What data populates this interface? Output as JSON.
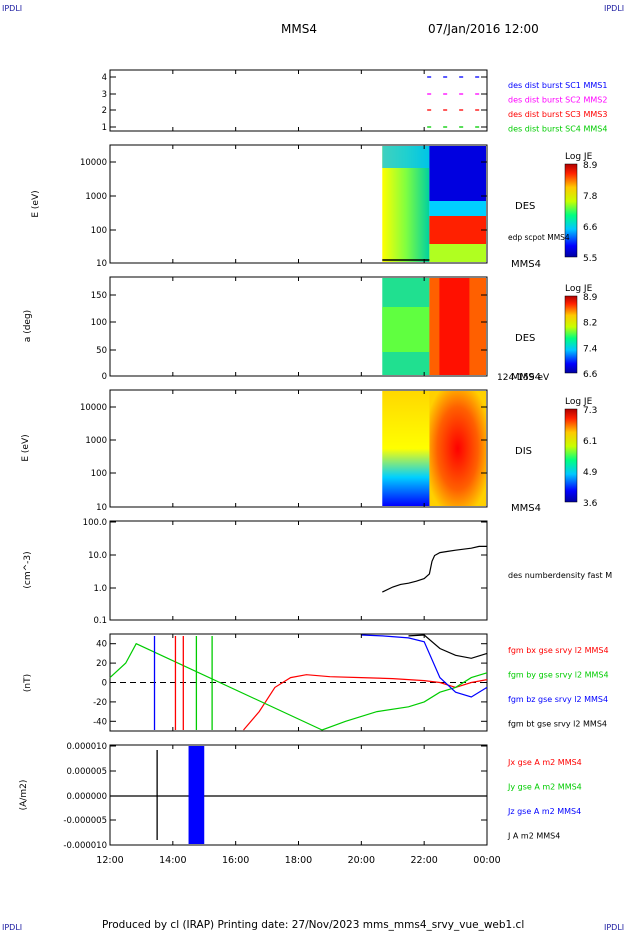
{
  "corners": {
    "tl": "IPDLI",
    "tr": "IPDLI",
    "bl": "IPDLI",
    "br": "IPDLI"
  },
  "header": {
    "spacecraft": "MMS4",
    "datetime": "07/Jan/2016 12:00"
  },
  "footer": {
    "text": "Produced by cl (IRAP)   Printing date: 27/Nov/2023   mms_mms4_srvy_vue_web1.cl"
  },
  "colors": {
    "blue": "#0000ff",
    "magenta": "#ff00ff",
    "red": "#ff0000",
    "green": "#00cc00",
    "black": "#000000"
  },
  "chart_data": [
    {
      "type": "scatter",
      "panel": "availability",
      "yticks": [
        "1",
        "2",
        "3",
        "4"
      ],
      "series": [
        {
          "name": "des dist burst SC1 MMS1",
          "color": "#0000ff",
          "y": 4
        },
        {
          "name": "des dist burst SC2 MMS2",
          "color": "#ff00ff",
          "y": 3
        },
        {
          "name": "des dist burst SC3 MMS3",
          "color": "#ff0000",
          "y": 2
        },
        {
          "name": "des dist burst SC4 MMS4",
          "color": "#00cc00",
          "y": 1
        }
      ],
      "x_start": "22:00",
      "x_end": "00:00"
    },
    {
      "type": "heatmap",
      "panel": "des-energy",
      "ylabel": "E (eV)",
      "yticks": [
        "10",
        "100",
        "1000",
        "10000"
      ],
      "label": "DES",
      "overlay": "edp scpot MMS4",
      "extra_label": "MMS4",
      "colorbar": {
        "title": "Log JE",
        "ticks": [
          "8.9",
          "7.8",
          "6.6",
          "5.5"
        ]
      }
    },
    {
      "type": "heatmap",
      "panel": "des-pitch",
      "ylabel": "a (deg)",
      "yticks": [
        "0",
        "50",
        "100",
        "150"
      ],
      "label": "DES",
      "extra_label": "MMS4",
      "energy_range": "124-159 eV",
      "colorbar": {
        "title": "Log JE",
        "ticks": [
          "8.9",
          "8.2",
          "7.4",
          "6.6"
        ]
      }
    },
    {
      "type": "heatmap",
      "panel": "dis-energy",
      "ylabel": "E (eV)",
      "yticks": [
        "10",
        "100",
        "1000",
        "10000"
      ],
      "label": "DIS",
      "extra_label": "MMS4",
      "colorbar": {
        "title": "Log JE",
        "ticks": [
          "7.3",
          "6.1",
          "4.9",
          "3.6"
        ]
      }
    },
    {
      "type": "line",
      "panel": "density",
      "ylabel": "(cm^-3)",
      "yticks": [
        "0.1",
        "1.0",
        "10.0",
        "100.0"
      ],
      "series": [
        {
          "name": "des numberdensity fast M",
          "color": "#000000",
          "x": [
            "20:40",
            "21:00",
            "21:15",
            "21:30",
            "21:45",
            "22:00",
            "22:10",
            "22:15",
            "22:20",
            "22:30",
            "22:45",
            "23:00",
            "23:15",
            "23:30",
            "23:45",
            "00:00"
          ],
          "y": [
            0.7,
            1.0,
            1.2,
            1.3,
            1.5,
            1.8,
            2.5,
            6,
            9,
            11,
            12,
            13,
            14,
            15,
            17,
            17
          ]
        }
      ]
    },
    {
      "type": "line",
      "panel": "magnetic-field",
      "ylabel": "(nT)",
      "yticks": [
        "-40",
        "-20",
        "0",
        "20",
        "40"
      ],
      "series": [
        {
          "name": "fgm bx gse srvy l2 MMS4",
          "color": "#ff0000",
          "x": [
            "16:15",
            "16:45",
            "17:15",
            "17:45",
            "18:15",
            "19:00",
            "20:00",
            "21:00",
            "22:00",
            "22:30",
            "23:00",
            "23:30",
            "00:00"
          ],
          "y": [
            -50,
            -30,
            -5,
            5,
            8,
            6,
            5,
            4,
            2,
            0,
            -5,
            0,
            3
          ]
        },
        {
          "name": "fgm by gse srvy l2 MMS4",
          "color": "#00cc00",
          "x": [
            "12:00",
            "12:30",
            "12:50",
            "18:45",
            "19:30",
            "20:30",
            "21:30",
            "22:00",
            "22:30",
            "23:00",
            "23:30",
            "00:00"
          ],
          "y": [
            5,
            20,
            40,
            -50,
            -40,
            -30,
            -25,
            -20,
            -10,
            -5,
            5,
            10
          ]
        },
        {
          "name": "fgm bz gse srvy l2 MMS4",
          "color": "#0000ff",
          "x": [
            "20:00",
            "20:40",
            "21:30",
            "22:00",
            "22:30",
            "23:00",
            "23:30",
            "00:00"
          ],
          "y": [
            50,
            48,
            46,
            42,
            5,
            -10,
            -15,
            -5
          ]
        },
        {
          "name": "fgm bt gse srvy l2 MMS4",
          "color": "#000000",
          "x": [
            "21:30",
            "22:00",
            "22:30",
            "23:00",
            "23:30",
            "00:00"
          ],
          "y": [
            48,
            50,
            35,
            28,
            25,
            30
          ]
        }
      ]
    },
    {
      "type": "line",
      "panel": "current-density",
      "ylabel": "(A/m2)",
      "yticks": [
        "-0.000010",
        "-0.000005",
        "0.000000",
        "0.000005",
        "0.000010"
      ],
      "xticks": [
        "12:00",
        "14:00",
        "16:00",
        "18:00",
        "20:00",
        "22:00",
        "00:00"
      ],
      "series": [
        {
          "name": "Jx gse A m2 MMS4",
          "color": "#ff0000"
        },
        {
          "name": "Jy gse A m2 MMS4",
          "color": "#00cc00"
        },
        {
          "name": "Jz gse A m2 MMS4",
          "color": "#0000ff"
        },
        {
          "name": "J A m2 MMS4",
          "color": "#000000"
        }
      ]
    }
  ]
}
